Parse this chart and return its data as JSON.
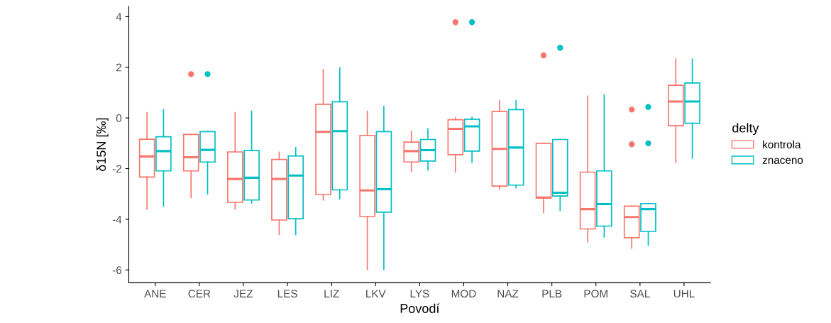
{
  "chart_data": {
    "type": "box",
    "xlabel": "Povodí",
    "ylabel": "δ15N [‰]",
    "legend_title": "delty",
    "legend": "right",
    "grid": false,
    "categories": [
      "ANE",
      "CER",
      "JEZ",
      "LES",
      "LIZ",
      "LKV",
      "LYS",
      "MOD",
      "NAZ",
      "PLB",
      "POM",
      "SAL",
      "UHL"
    ],
    "ylim": [
      -6.5,
      4.4
    ],
    "yticks": [
      -6,
      -4,
      -2,
      0,
      2,
      4
    ],
    "series": [
      {
        "name": "kontrola",
        "color": "#f8766d",
        "boxes": [
          {
            "low": -3.6,
            "q1": -2.33,
            "median": -1.52,
            "q3": -0.84,
            "high": 0.21
          },
          {
            "low": -3.14,
            "q1": -2.09,
            "median": -1.55,
            "q3": -0.65,
            "high": -0.65,
            "outliers": [
              1.73
            ]
          },
          {
            "low": -3.6,
            "q1": -3.33,
            "median": -2.41,
            "q3": -1.34,
            "high": 0.21
          },
          {
            "low": -4.6,
            "q1": -4.03,
            "median": -2.41,
            "q3": -1.64,
            "high": -1.35
          },
          {
            "low": -3.24,
            "q1": -3.03,
            "median": -0.55,
            "q3": 0.54,
            "high": 1.91
          },
          {
            "low": -5.98,
            "q1": -3.89,
            "median": -2.86,
            "q3": -0.69,
            "high": 0.27
          },
          {
            "low": -2.1,
            "q1": -1.74,
            "median": -1.31,
            "q3": -0.95,
            "high": -0.54
          },
          {
            "low": -2.14,
            "q1": -1.45,
            "median": -0.43,
            "q3": -0.07,
            "high": 0.0,
            "outliers": [
              3.78
            ]
          },
          {
            "low": -2.81,
            "q1": -2.69,
            "median": -1.22,
            "q3": 0.26,
            "high": 0.69
          },
          {
            "low": -3.74,
            "q1": -3.17,
            "median": -3.14,
            "q3": -1.0,
            "high": -1.0,
            "outliers": [
              2.47
            ]
          },
          {
            "low": -4.89,
            "q1": -4.38,
            "median": -3.6,
            "q3": -2.14,
            "high": 0.86
          },
          {
            "low": -5.14,
            "q1": -4.73,
            "median": -3.91,
            "q3": -3.48,
            "high": -3.48,
            "outliers": [
              0.33,
              -1.04
            ]
          },
          {
            "low": -1.76,
            "q1": -0.31,
            "median": 0.65,
            "q3": 1.29,
            "high": 2.33
          }
        ]
      },
      {
        "name": "znaceno",
        "color": "#00bfc4",
        "boxes": [
          {
            "low": -3.48,
            "q1": -2.09,
            "median": -1.31,
            "q3": -0.74,
            "high": 0.33
          },
          {
            "low": -3.0,
            "q1": -1.74,
            "median": -1.26,
            "q3": -0.54,
            "high": -0.54,
            "outliers": [
              1.73
            ]
          },
          {
            "low": -3.36,
            "q1": -3.24,
            "median": -2.36,
            "q3": -1.29,
            "high": 0.27
          },
          {
            "low": -4.6,
            "q1": -3.98,
            "median": -2.27,
            "q3": -1.5,
            "high": -1.17
          },
          {
            "low": -3.19,
            "q1": -2.84,
            "median": -0.52,
            "q3": 0.64,
            "high": 1.98
          },
          {
            "low": -5.98,
            "q1": -3.72,
            "median": -2.81,
            "q3": -0.54,
            "high": 0.46
          },
          {
            "low": -2.05,
            "q1": -1.7,
            "median": -1.27,
            "q3": -0.85,
            "high": -0.43
          },
          {
            "low": -1.76,
            "q1": -1.31,
            "median": -0.33,
            "q3": -0.05,
            "high": 0.02,
            "outliers": [
              3.78
            ]
          },
          {
            "low": -2.76,
            "q1": -2.65,
            "median": -1.17,
            "q3": 0.33,
            "high": 0.69
          },
          {
            "low": -3.65,
            "q1": -3.08,
            "median": -2.95,
            "q3": -0.85,
            "high": -0.85,
            "outliers": [
              2.77
            ]
          },
          {
            "low": -4.7,
            "q1": -4.27,
            "median": -3.4,
            "q3": -2.09,
            "high": 0.91
          },
          {
            "low": -5.02,
            "q1": -4.48,
            "median": -3.6,
            "q3": -3.38,
            "high": -3.38,
            "outliers": [
              0.43,
              -1.0
            ]
          },
          {
            "low": -1.59,
            "q1": -0.21,
            "median": 0.65,
            "q3": 1.38,
            "high": 2.33
          }
        ]
      }
    ]
  }
}
